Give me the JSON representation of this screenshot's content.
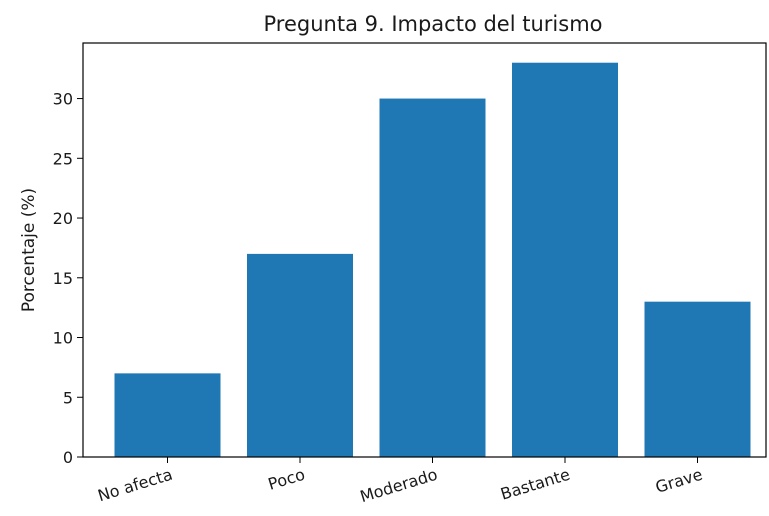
{
  "chart_data": {
    "type": "bar",
    "title": "Pregunta 9. Impacto del turismo",
    "xlabel": "",
    "ylabel": "Porcentaje (%)",
    "categories": [
      "No afecta",
      "Poco",
      "Moderado",
      "Bastante",
      "Grave"
    ],
    "values": [
      7,
      17,
      30,
      33,
      13
    ],
    "ylim": [
      0,
      34.65
    ],
    "yticks": [
      0,
      5,
      10,
      15,
      20,
      25,
      30
    ],
    "grid": false,
    "bar_color": "#1f77b4"
  }
}
